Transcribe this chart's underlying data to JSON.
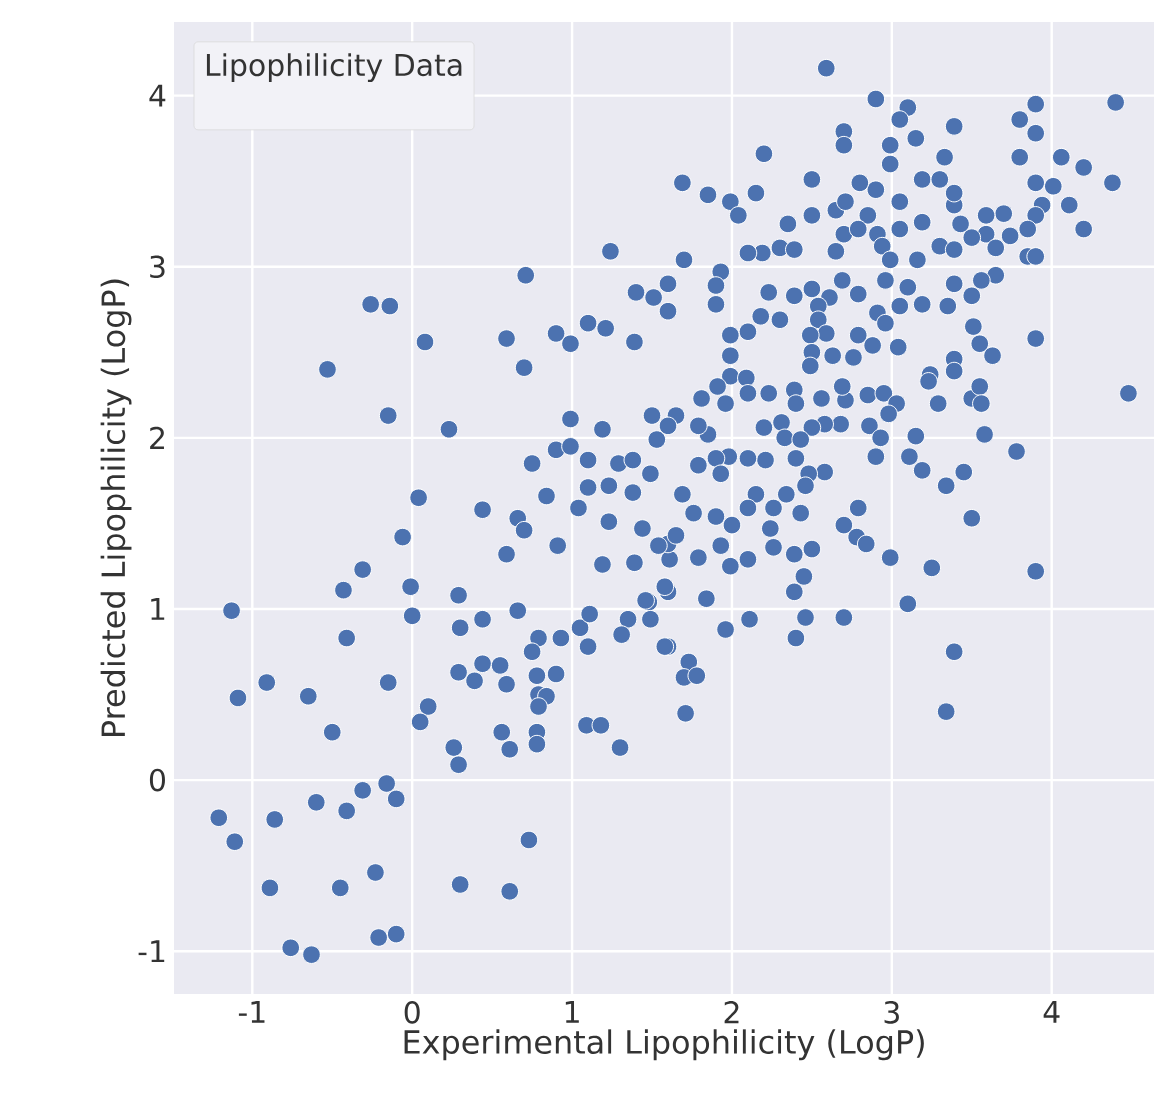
{
  "chart_data": {
    "type": "scatter",
    "xlabel": "Experimental Lipophilicity (LogP)",
    "ylabel": "Predicted Lipophilicity (LogP)",
    "legend_title": "Lipophilicity Data",
    "grid": true,
    "xlim": [
      -1.49,
      4.64
    ],
    "ylim": [
      -1.25,
      4.43
    ],
    "xticks": [
      -1,
      0,
      1,
      2,
      3,
      4
    ],
    "yticks": [
      -1,
      0,
      1,
      2,
      3,
      4
    ],
    "series": [
      {
        "color": "#4c72b0",
        "x": [
          0.04,
          0.44,
          0.66,
          0.7,
          -0.06,
          0.59,
          0.91,
          -0.31,
          -0.43,
          -0.01,
          0.29,
          -1.13,
          0.0,
          0.3,
          0.44,
          0.66,
          -0.41,
          0.79,
          0.93,
          0.75,
          0.44,
          0.39,
          0.55,
          0.59,
          0.29,
          -0.91,
          -1.09,
          -0.65,
          -0.15,
          0.78,
          0.9,
          0.79,
          0.84,
          0.79,
          0.1,
          0.05,
          -0.5,
          0.56,
          0.61,
          0.78,
          0.78,
          0.26,
          0.29,
          1.09,
          1.18,
          1.3,
          1.05,
          1.11,
          1.1,
          1.35,
          1.31,
          1.19,
          1.39,
          1.44,
          1.23,
          1.04,
          1.48,
          -1.21,
          -1.11,
          -0.86,
          -0.6,
          -0.41,
          -0.31,
          -0.16,
          -0.1,
          0.73,
          -0.89,
          -0.45,
          -0.23,
          0.3,
          0.61,
          -0.76,
          -0.63,
          -0.21,
          -0.1,
          1.24,
          0.71,
          -0.26,
          -0.14,
          0.08,
          -0.53,
          0.59,
          0.7,
          0.9,
          0.99,
          1.1,
          1.21,
          1.39,
          1.4,
          1.51,
          -0.15,
          0.23,
          0.99,
          1.19,
          1.5,
          1.53,
          0.75,
          0.9,
          0.99,
          1.1,
          1.29,
          1.38,
          1.49,
          1.1,
          1.23,
          1.38,
          0.84,
          2.59,
          2.9,
          3.1,
          3.05,
          3.39,
          3.15,
          2.7,
          2.7,
          2.2,
          2.99,
          2.99,
          3.9,
          3.8,
          3.9,
          4.4,
          3.8,
          4.06,
          4.2,
          4.38,
          3.9,
          4.01,
          4.11,
          4.2,
          3.94,
          3.9,
          3.85,
          3.74,
          3.7,
          3.59,
          3.59,
          3.65,
          3.5,
          3.43,
          3.39,
          3.39,
          3.33,
          3.19,
          3.3,
          2.9,
          2.8,
          2.5,
          2.15,
          1.85,
          1.69,
          1.99,
          2.04,
          2.35,
          2.5,
          2.65,
          2.71,
          2.85,
          3.05,
          3.19,
          2.7,
          2.79,
          2.91,
          3.05,
          2.65,
          2.94,
          2.99,
          3.16,
          3.3,
          3.39,
          3.85,
          3.9,
          3.65,
          3.56,
          3.5,
          3.39,
          3.35,
          3.19,
          3.1,
          2.96,
          3.05,
          2.91,
          2.96,
          2.79,
          2.69,
          2.61,
          2.5,
          2.39,
          2.23,
          2.54,
          2.3,
          2.39,
          2.19,
          2.1,
          1.93,
          1.9,
          1.9,
          1.7,
          1.6,
          1.6,
          2.18,
          2.3,
          2.54,
          2.59,
          2.49,
          2.1,
          1.99,
          1.99,
          1.99,
          2.09,
          2.5,
          2.63,
          2.49,
          2.76,
          2.79,
          2.88,
          3.04,
          3.51,
          3.55,
          3.63,
          3.39,
          3.39,
          3.24,
          3.23,
          3.9,
          4.48,
          1.91,
          1.81,
          2.1,
          2.23,
          1.96,
          2.39,
          2.4,
          2.56,
          2.71,
          2.69,
          2.85,
          2.95,
          3.03,
          2.98,
          2.86,
          2.93,
          3.15,
          3.29,
          3.5,
          3.55,
          3.56,
          3.58,
          3.78,
          3.45,
          3.34,
          3.19,
          3.11,
          2.9,
          2.68,
          2.58,
          2.5,
          2.31,
          2.2,
          2.33,
          2.4,
          2.43,
          2.58,
          2.48,
          2.46,
          2.34,
          2.15,
          2.21,
          2.1,
          1.98,
          1.9,
          1.93,
          1.79,
          1.85,
          1.79,
          1.65,
          1.6,
          1.69,
          3.5,
          3.9,
          3.25,
          2.99,
          3.1,
          3.39,
          3.34,
          2.7,
          2.46,
          2.4,
          2.39,
          2.45,
          2.5,
          2.39,
          2.26,
          2.24,
          2.43,
          2.26,
          2.1,
          2.7,
          2.78,
          2.84,
          2.79,
          2.11,
          1.96,
          2.1,
          1.99,
          1.93,
          1.9,
          1.76,
          2.0,
          1.79,
          1.84,
          1.61,
          1.6,
          1.65,
          1.6,
          1.6,
          1.73,
          1.7,
          1.78,
          1.71,
          1.54,
          1.58,
          1.46,
          1.49,
          1.58
        ],
        "values": [
          1.65,
          1.58,
          1.53,
          1.46,
          1.42,
          1.32,
          1.37,
          1.23,
          1.11,
          1.13,
          1.08,
          0.99,
          0.96,
          0.89,
          0.94,
          0.99,
          0.83,
          0.83,
          0.83,
          0.75,
          0.68,
          0.58,
          0.67,
          0.56,
          0.63,
          0.57,
          0.48,
          0.49,
          0.57,
          0.61,
          0.62,
          0.5,
          0.49,
          0.43,
          0.43,
          0.34,
          0.28,
          0.28,
          0.18,
          0.28,
          0.21,
          0.19,
          0.09,
          0.32,
          0.32,
          0.19,
          0.89,
          0.97,
          0.78,
          0.94,
          0.85,
          1.26,
          1.27,
          1.47,
          1.51,
          1.59,
          1.04,
          -0.22,
          -0.36,
          -0.23,
          -0.13,
          -0.18,
          -0.06,
          -0.02,
          -0.11,
          -0.35,
          -0.63,
          -0.63,
          -0.54,
          -0.61,
          -0.65,
          -0.98,
          -1.02,
          -0.92,
          -0.9,
          3.09,
          2.95,
          2.78,
          2.77,
          2.56,
          2.4,
          2.58,
          2.41,
          2.61,
          2.55,
          2.67,
          2.64,
          2.56,
          2.85,
          2.82,
          2.13,
          2.05,
          2.11,
          2.05,
          2.13,
          1.99,
          1.85,
          1.93,
          1.95,
          1.87,
          1.85,
          1.87,
          1.79,
          1.71,
          1.72,
          1.68,
          1.66,
          4.16,
          3.98,
          3.93,
          3.86,
          3.82,
          3.75,
          3.79,
          3.71,
          3.66,
          3.71,
          3.6,
          3.95,
          3.86,
          3.78,
          3.96,
          3.64,
          3.64,
          3.58,
          3.49,
          3.49,
          3.47,
          3.36,
          3.22,
          3.36,
          3.3,
          3.22,
          3.18,
          3.31,
          3.3,
          3.19,
          3.11,
          3.17,
          3.25,
          3.36,
          3.43,
          3.64,
          3.51,
          3.51,
          3.45,
          3.49,
          3.51,
          3.43,
          3.42,
          3.49,
          3.38,
          3.3,
          3.25,
          3.3,
          3.33,
          3.38,
          3.3,
          3.38,
          3.26,
          3.19,
          3.22,
          3.19,
          3.22,
          3.09,
          3.12,
          3.04,
          3.04,
          3.12,
          3.1,
          3.06,
          3.06,
          2.95,
          2.92,
          2.83,
          2.9,
          2.77,
          2.78,
          2.88,
          2.92,
          2.77,
          2.73,
          2.67,
          2.84,
          2.92,
          2.82,
          2.87,
          2.83,
          2.85,
          2.77,
          3.11,
          3.1,
          3.08,
          3.08,
          2.97,
          2.89,
          2.78,
          3.04,
          2.9,
          2.74,
          2.71,
          2.69,
          2.69,
          2.61,
          2.6,
          2.62,
          2.6,
          2.48,
          2.36,
          2.35,
          2.5,
          2.48,
          2.42,
          2.47,
          2.6,
          2.54,
          2.53,
          2.65,
          2.55,
          2.48,
          2.46,
          2.39,
          2.37,
          2.33,
          2.58,
          2.26,
          2.3,
          2.23,
          2.26,
          2.26,
          2.2,
          2.28,
          2.2,
          2.23,
          2.22,
          2.3,
          2.25,
          2.26,
          2.2,
          2.14,
          2.07,
          2.0,
          2.01,
          2.2,
          2.23,
          2.3,
          2.2,
          2.02,
          1.92,
          1.8,
          1.72,
          1.81,
          1.89,
          1.89,
          2.08,
          2.08,
          2.06,
          2.09,
          2.06,
          2.0,
          1.88,
          1.99,
          1.8,
          1.79,
          1.72,
          1.67,
          1.67,
          1.87,
          1.88,
          1.89,
          1.88,
          1.79,
          1.84,
          2.02,
          2.07,
          2.13,
          2.07,
          1.67,
          1.53,
          1.22,
          1.24,
          1.3,
          1.03,
          0.75,
          0.4,
          0.95,
          0.95,
          0.83,
          1.1,
          1.19,
          1.35,
          1.32,
          1.36,
          1.47,
          1.56,
          1.59,
          1.59,
          1.49,
          1.42,
          1.38,
          1.59,
          0.94,
          0.88,
          1.29,
          1.25,
          1.37,
          1.54,
          1.56,
          1.49,
          1.3,
          1.06,
          1.29,
          1.38,
          1.43,
          1.1,
          0.78,
          0.69,
          0.6,
          0.61,
          0.39,
          1.37,
          1.13,
          1.05,
          0.94,
          0.78
        ]
      }
    ]
  }
}
